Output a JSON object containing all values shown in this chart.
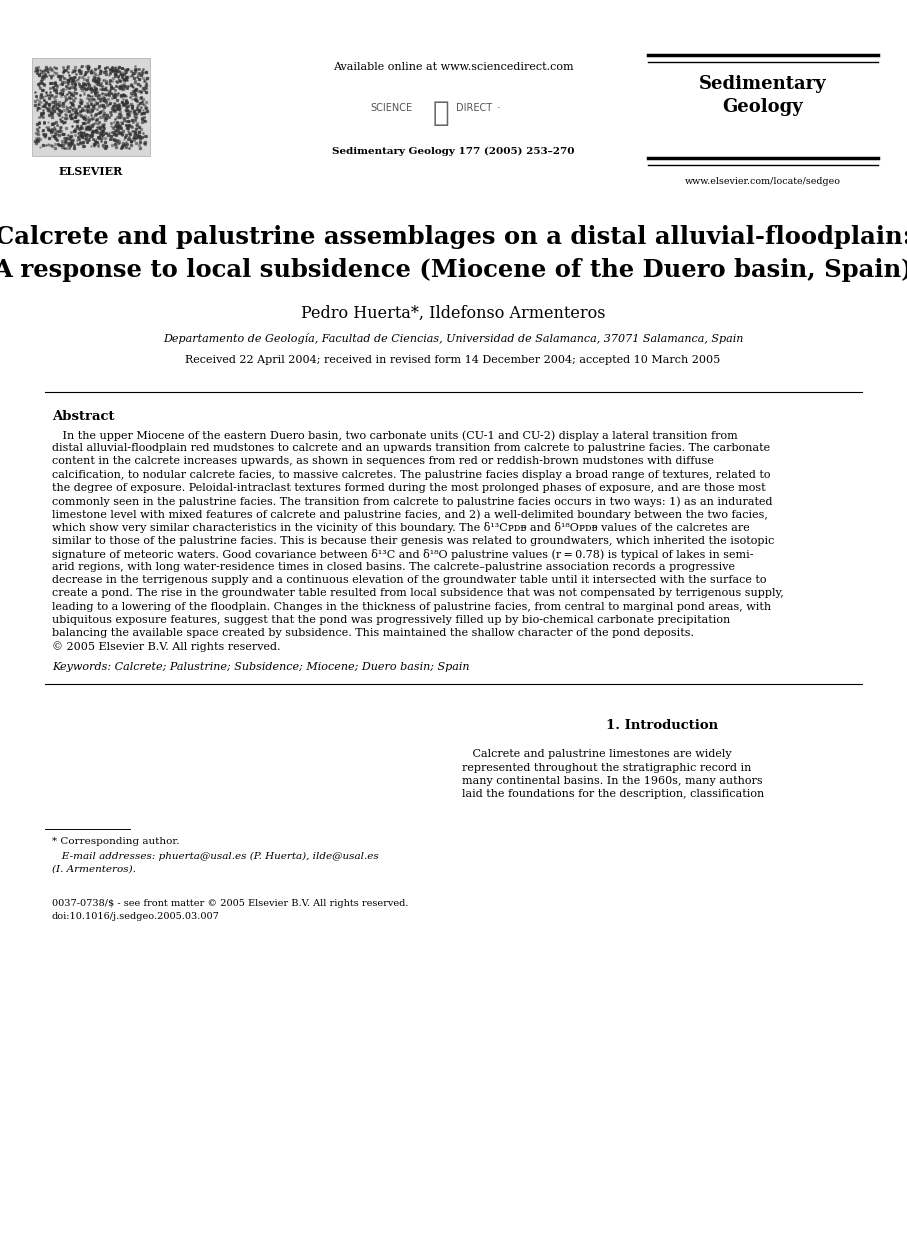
{
  "bg_color": "#ffffff",
  "available_online": "Available online at www.sciencedirect.com",
  "journal_ref": "Sedimentary Geology 177 (2005) 253–270",
  "journal_name_line1": "Sedimentary",
  "journal_name_line2": "Geology",
  "website": "www.elsevier.com/locate/sedgeo",
  "title_line1": "Calcrete and palustrine assemblages on a distal alluvial-floodplain:",
  "title_line2": "A response to local subsidence (Miocene of the Duero basin, Spain)",
  "authors": "Pedro Huerta*, Ildefonso Armenteros",
  "affiliation": "Departamento de Geología, Facultad de Ciencias, Universidad de Salamanca, 37071 Salamanca, Spain",
  "received": "Received 22 April 2004; received in revised form 14 December 2004; accepted 10 March 2005",
  "abstract_title": "Abstract",
  "abstract_lines": [
    "   In the upper Miocene of the eastern Duero basin, two carbonate units (CU-1 and CU-2) display a lateral transition from",
    "distal alluvial-floodplain red mudstones to calcrete and an upwards transition from calcrete to palustrine facies. The carbonate",
    "content in the calcrete increases upwards, as shown in sequences from red or reddish-brown mudstones with diffuse",
    "calcification, to nodular calcrete facies, to massive calcretes. The palustrine facies display a broad range of textures, related to",
    "the degree of exposure. Peloidal-intraclast textures formed during the most prolonged phases of exposure, and are those most",
    "commonly seen in the palustrine facies. The transition from calcrete to palustrine facies occurs in two ways: 1) as an indurated",
    "limestone level with mixed features of calcrete and palustrine facies, and 2) a well-delimited boundary between the two facies,",
    "which show very similar characteristics in the vicinity of this boundary. The δ¹³Cᴘᴅᴃ and δ¹⁸Oᴘᴅᴃ values of the calcretes are",
    "similar to those of the palustrine facies. This is because their genesis was related to groundwaters, which inherited the isotopic",
    "signature of meteoric waters. Good covariance between δ¹³C and δ¹⁸O palustrine values (r = 0.78) is typical of lakes in semi-",
    "arid regions, with long water-residence times in closed basins. The calcrete–palustrine association records a progressive",
    "decrease in the terrigenous supply and a continuous elevation of the groundwater table until it intersected with the surface to",
    "create a pond. The rise in the groundwater table resulted from local subsidence that was not compensated by terrigenous supply,",
    "leading to a lowering of the floodplain. Changes in the thickness of palustrine facies, from central to marginal pond areas, with",
    "ubiquitous exposure features, suggest that the pond was progressively filled up by bio-chemical carbonate precipitation",
    "balancing the available space created by subsidence. This maintained the shallow character of the pond deposits.",
    "© 2005 Elsevier B.V. All rights reserved."
  ],
  "keywords": "Keywords: Calcrete; Palustrine; Subsidence; Miocene; Duero basin; Spain",
  "section1_title": "1. Introduction",
  "section1_lines": [
    "   Calcrete and palustrine limestones are widely",
    "represented throughout the stratigraphic record in",
    "many continental basins. In the 1960s, many authors",
    "laid the foundations for the description, classification"
  ],
  "footnote_star": "* Corresponding author.",
  "footnote_email_line1": "   E-mail addresses: phuerta@usal.es (P. Huerta), ilde@usal.es",
  "footnote_email_line2": "(I. Armenteros).",
  "footer_line1": "0037-0738/$ - see front matter © 2005 Elsevier B.V. All rights reserved.",
  "footer_line2": "doi:10.1016/j.sedgeo.2005.03.007"
}
